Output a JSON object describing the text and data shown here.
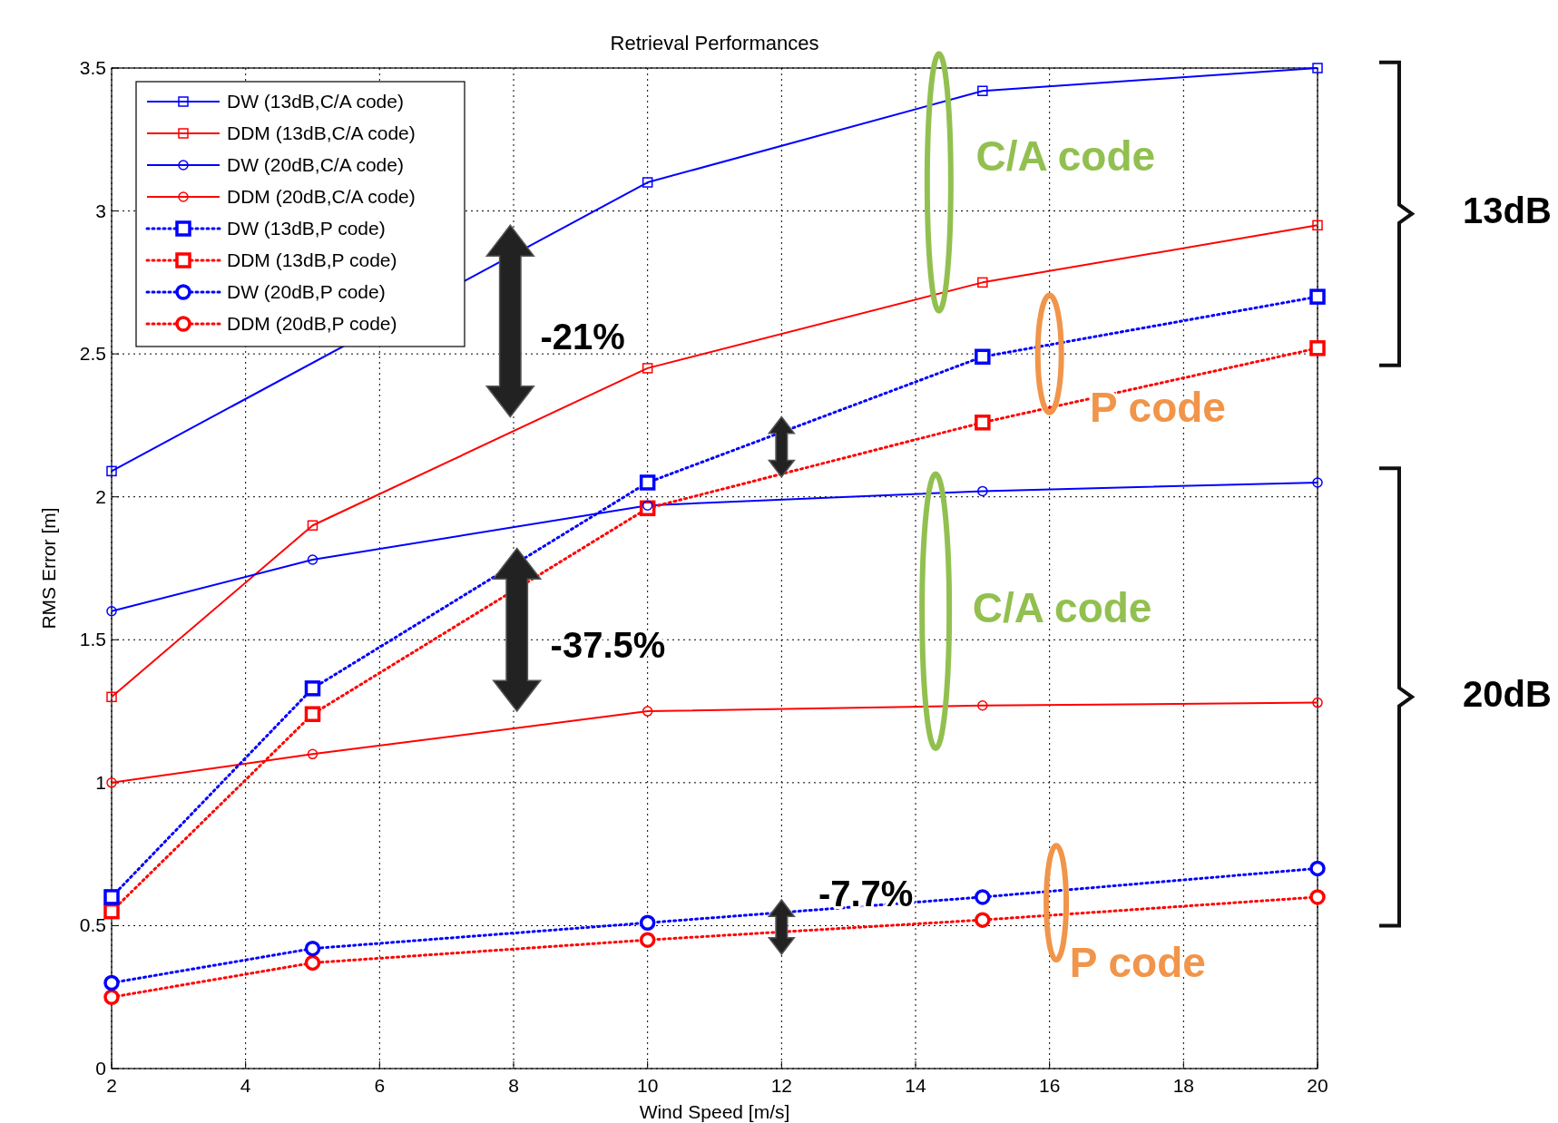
{
  "chart_data": {
    "type": "line",
    "title": "Retrieval Performances",
    "xlabel": "Wind Speed [m/s]",
    "ylabel": "RMS Error [m]",
    "x": [
      2,
      5,
      10,
      15,
      20
    ],
    "xlim": [
      2,
      20
    ],
    "xticks": [
      2,
      4,
      6,
      8,
      10,
      12,
      14,
      16,
      18,
      20
    ],
    "ylim": [
      0,
      3.5
    ],
    "yticks": [
      0,
      0.5,
      1,
      1.5,
      2,
      2.5,
      3,
      3.5
    ],
    "grid": true,
    "legend": "top left",
    "series": [
      {
        "name": "DW (13dB,C/A code)",
        "color": "#0000ff",
        "values": [
          2.09,
          null,
          3.1,
          3.42,
          3.5
        ],
        "marker": "square",
        "line_style": "solid"
      },
      {
        "name": "DDM (13dB,C/A code)",
        "color": "#ff0000",
        "values": [
          1.3,
          1.9,
          2.45,
          2.75,
          2.95
        ],
        "marker": "square",
        "line_style": "solid"
      },
      {
        "name": "DW (20dB,C/A code)",
        "color": "#0000ff",
        "values": [
          1.6,
          1.78,
          1.97,
          2.02,
          2.05
        ],
        "marker": "circle",
        "line_style": "solid"
      },
      {
        "name": "DDM (20dB,C/A code)",
        "color": "#ff0000",
        "values": [
          1.0,
          1.1,
          1.25,
          1.27,
          1.28
        ],
        "marker": "circle",
        "line_style": "solid"
      },
      {
        "name": "DW (13dB,P code)",
        "color": "#0000ff",
        "values": [
          0.6,
          1.33,
          2.05,
          2.49,
          2.7
        ],
        "marker": "square",
        "line_style": "dotted"
      },
      {
        "name": "DDM (13dB,P code)",
        "color": "#ff0000",
        "values": [
          0.55,
          1.24,
          1.96,
          2.26,
          2.52
        ],
        "marker": "square",
        "line_style": "dotted"
      },
      {
        "name": "DW (20dB,P code)",
        "color": "#0000ff",
        "values": [
          0.3,
          0.42,
          0.51,
          0.6,
          0.7
        ],
        "marker": "circle",
        "line_style": "dotted"
      },
      {
        "name": "DDM (20dB,P code)",
        "color": "#ff0000",
        "values": [
          0.25,
          0.37,
          0.45,
          0.52,
          0.6
        ],
        "marker": "circle",
        "line_style": "dotted"
      }
    ],
    "annotations": [
      "-21%",
      "-37.5%",
      "-7.7%",
      "C/A code",
      "P code",
      "C/A code",
      "P code",
      "13dB",
      "20dB"
    ]
  }
}
